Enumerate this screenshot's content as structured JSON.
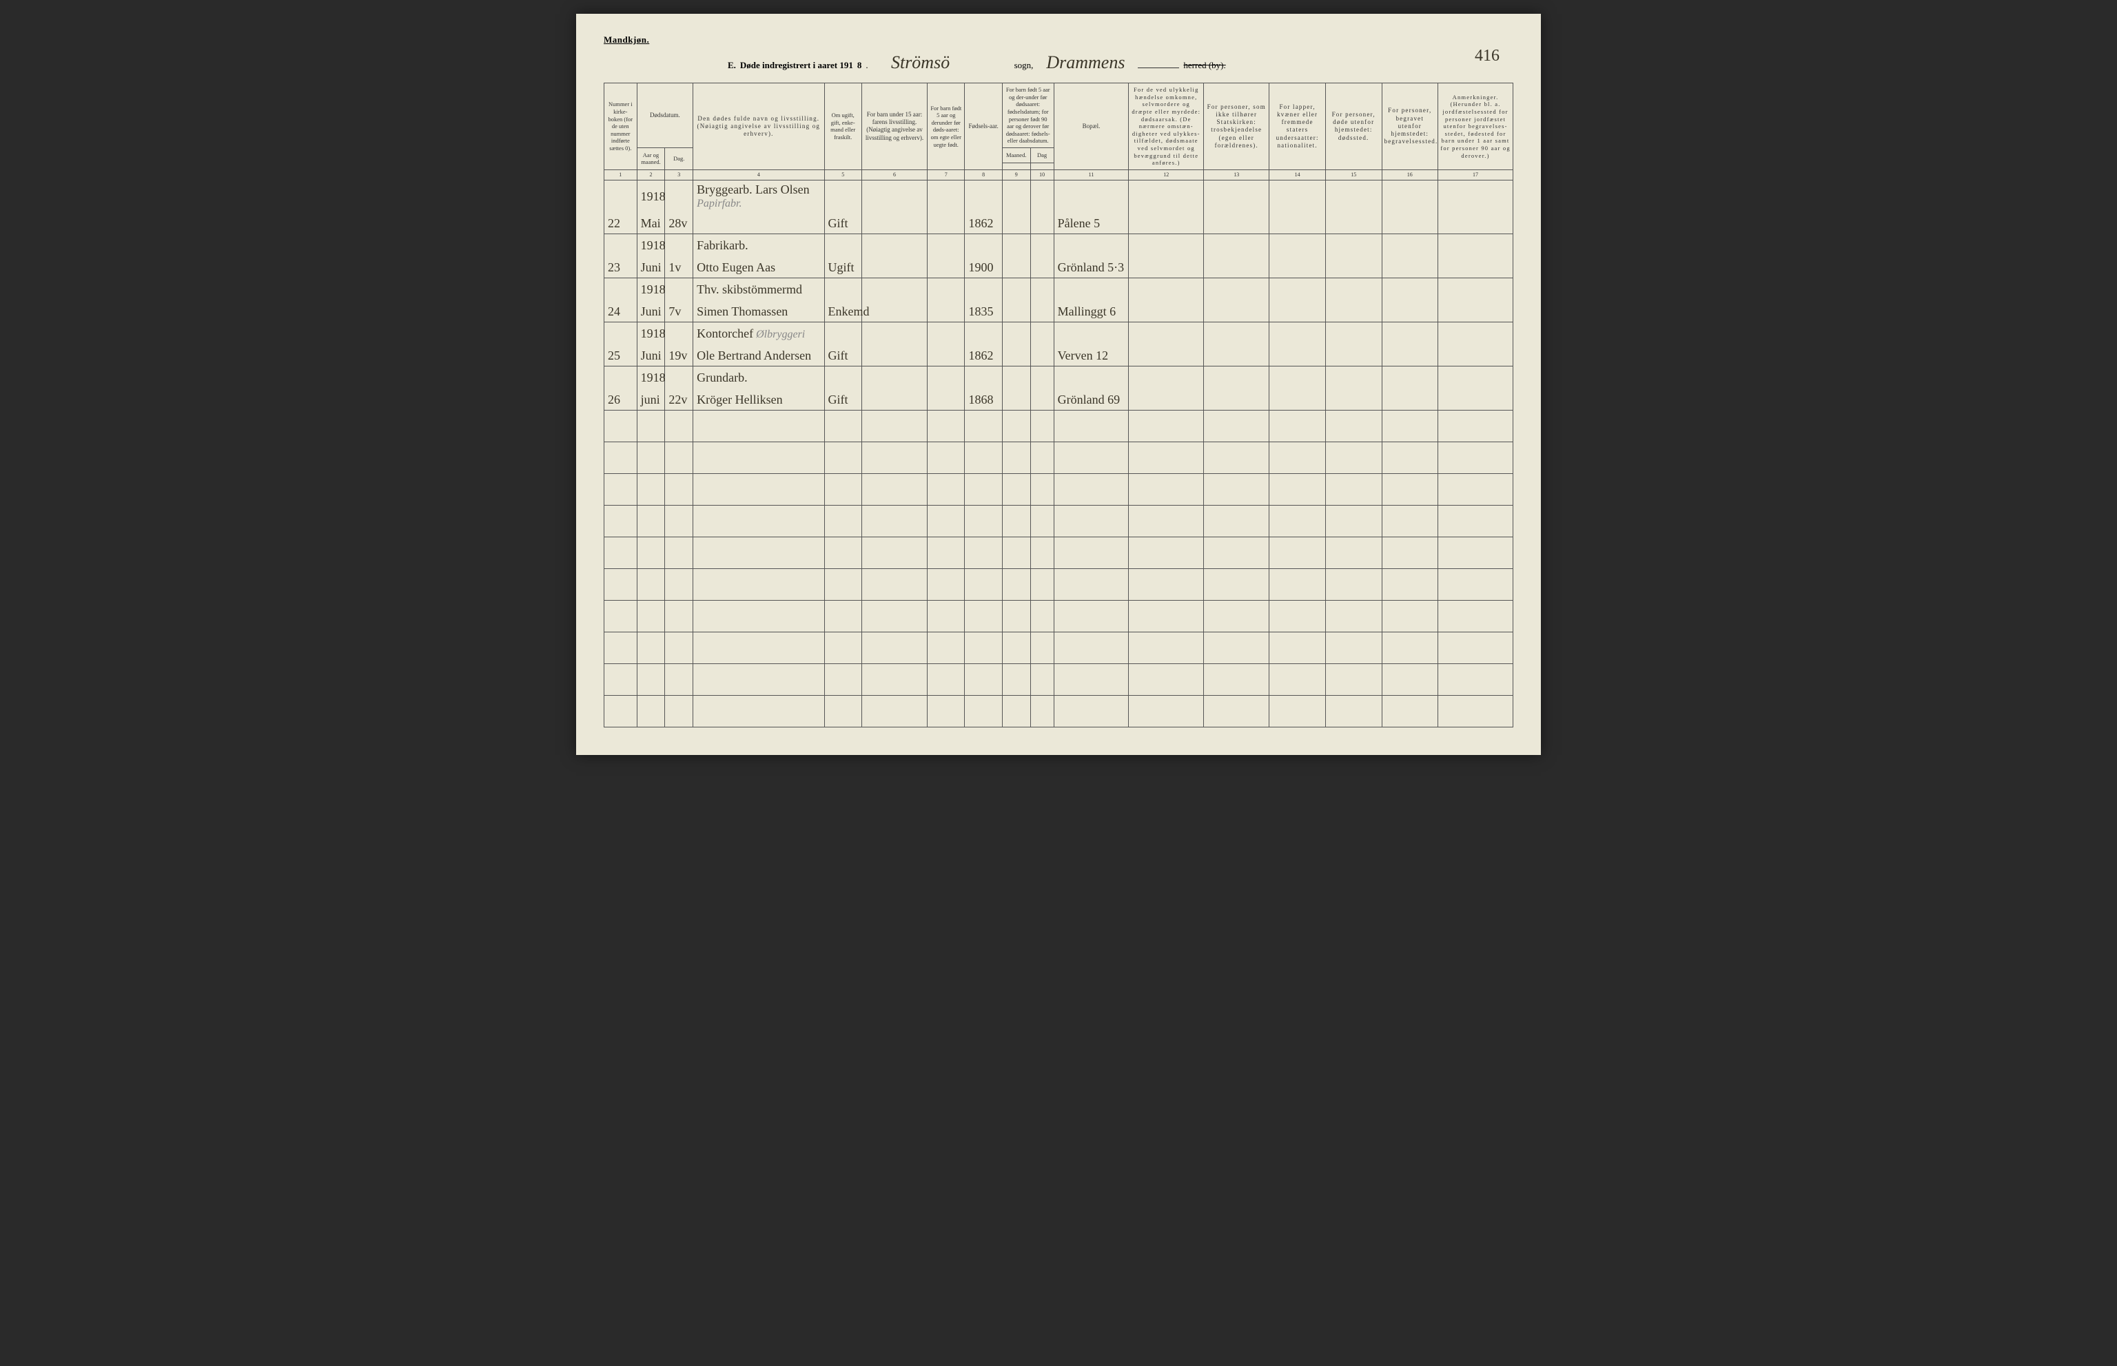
{
  "header": {
    "gender": "Mandkjøn.",
    "title_prefix": "E.",
    "title_text": "Døde indregistrert i aaret 191",
    "year_suffix": "8",
    "sogn_value": "Strömsö",
    "sogn_label": "sogn,",
    "herred_value": "Drammens",
    "herred_label": "herred (by).",
    "page_number": "416"
  },
  "columns": {
    "c1": "Nummer i kirke-boken (for de uten nummer indførte sættes 0).",
    "c2": "Dødsdatum.",
    "c2a": "Aar og maaned.",
    "c2b": "Dag.",
    "c3": "Den dødes fulde navn og livsstilling. (Nøiagtig angivelse av livsstilling og erhverv).",
    "c4": "Om ugift, gift, enke-mand eller fraskilt.",
    "c5": "For barn under 15 aar: farens livsstilling. (Nøiagtig angivelse av livsstilling og erhverv).",
    "c6": "For barn født 5 aar og derunder før døds-aaret: om egte eller uegte født.",
    "c7": "Fødsels-aar.",
    "c8": "For barn født 5 aar og der-under før dødsaaret: fødselsdatum; for personer født 90 aar og derover før dødsaaret: fødsels- eller daabsdatum.",
    "c8a": "Maaned.",
    "c8b": "Dag",
    "c9": "Bopæl.",
    "c10": "For de ved ulykkelig hændelse omkomne, selvmordere og dræpte eller myrdede: dødsaarsak. (De nærmere omstæn-digheter ved ulykkes-tilfældet, dødsmaate ved selvmordet og bevæggrund til dette anføres.)",
    "c11": "For personer, som ikke tilhører Statskirken: trosbekjendelse (egen eller forældrenes).",
    "c12": "For lapper, kvæner eller fremmede staters undersaatter: nationalitet.",
    "c13": "For personer, døde utenfor hjemstedet: dødssted.",
    "c14": "For personer, begravet utenfor hjemstedet: begravelsessted.",
    "c15": "Anmerkninger. (Herunder bl. a. jordfæstelsessted for personer jordfæstet utenfor begravelses-stedet, fødested for barn under 1 aar samt for personer 90 aar og derover.)"
  },
  "numrow": [
    "1",
    "2",
    "3",
    "4",
    "5",
    "6",
    "7",
    "8",
    "9",
    "10",
    "11",
    "12",
    "13",
    "14",
    "15",
    "16",
    "17"
  ],
  "rows": [
    {
      "num": "22",
      "aar": "1918",
      "mnd": "Mai",
      "dag": "28v",
      "name_top": "Bryggearb. Lars Olsen",
      "annot": "Papirfabr.",
      "status": "Gift",
      "fodsaar": "1862",
      "bopael": "Pålene 5"
    },
    {
      "num": "23",
      "aar": "1918",
      "mnd": "Juni",
      "dag": "1v",
      "name_top": "Fabrikarb.",
      "name_bot": "Otto Eugen Aas",
      "status": "Ugift",
      "fodsaar": "1900",
      "bopael": "Grönland 5·3"
    },
    {
      "num": "24",
      "aar": "1918",
      "mnd": "Juni",
      "dag": "7v",
      "name_top": "Thv. skibstömmermd",
      "name_bot": "Simen Thomassen",
      "status": "Enkemd",
      "fodsaar": "1835",
      "bopael": "Mallinggt 6"
    },
    {
      "num": "25",
      "aar": "1918",
      "mnd": "Juni",
      "dag": "19v",
      "name_top": "Kontorchef",
      "annot": "Ølbryggeri",
      "name_bot": "Ole Bertrand Andersen",
      "status": "Gift",
      "fodsaar": "1862",
      "bopael": "Verven 12"
    },
    {
      "num": "26",
      "aar": "1918",
      "mnd": "juni",
      "dag": "22v",
      "name_top": "Grundarb.",
      "name_bot": "Kröger Helliksen",
      "status": "Gift",
      "fodsaar": "1868",
      "bopael": "Grönland 69"
    }
  ],
  "empty_rows": 10
}
